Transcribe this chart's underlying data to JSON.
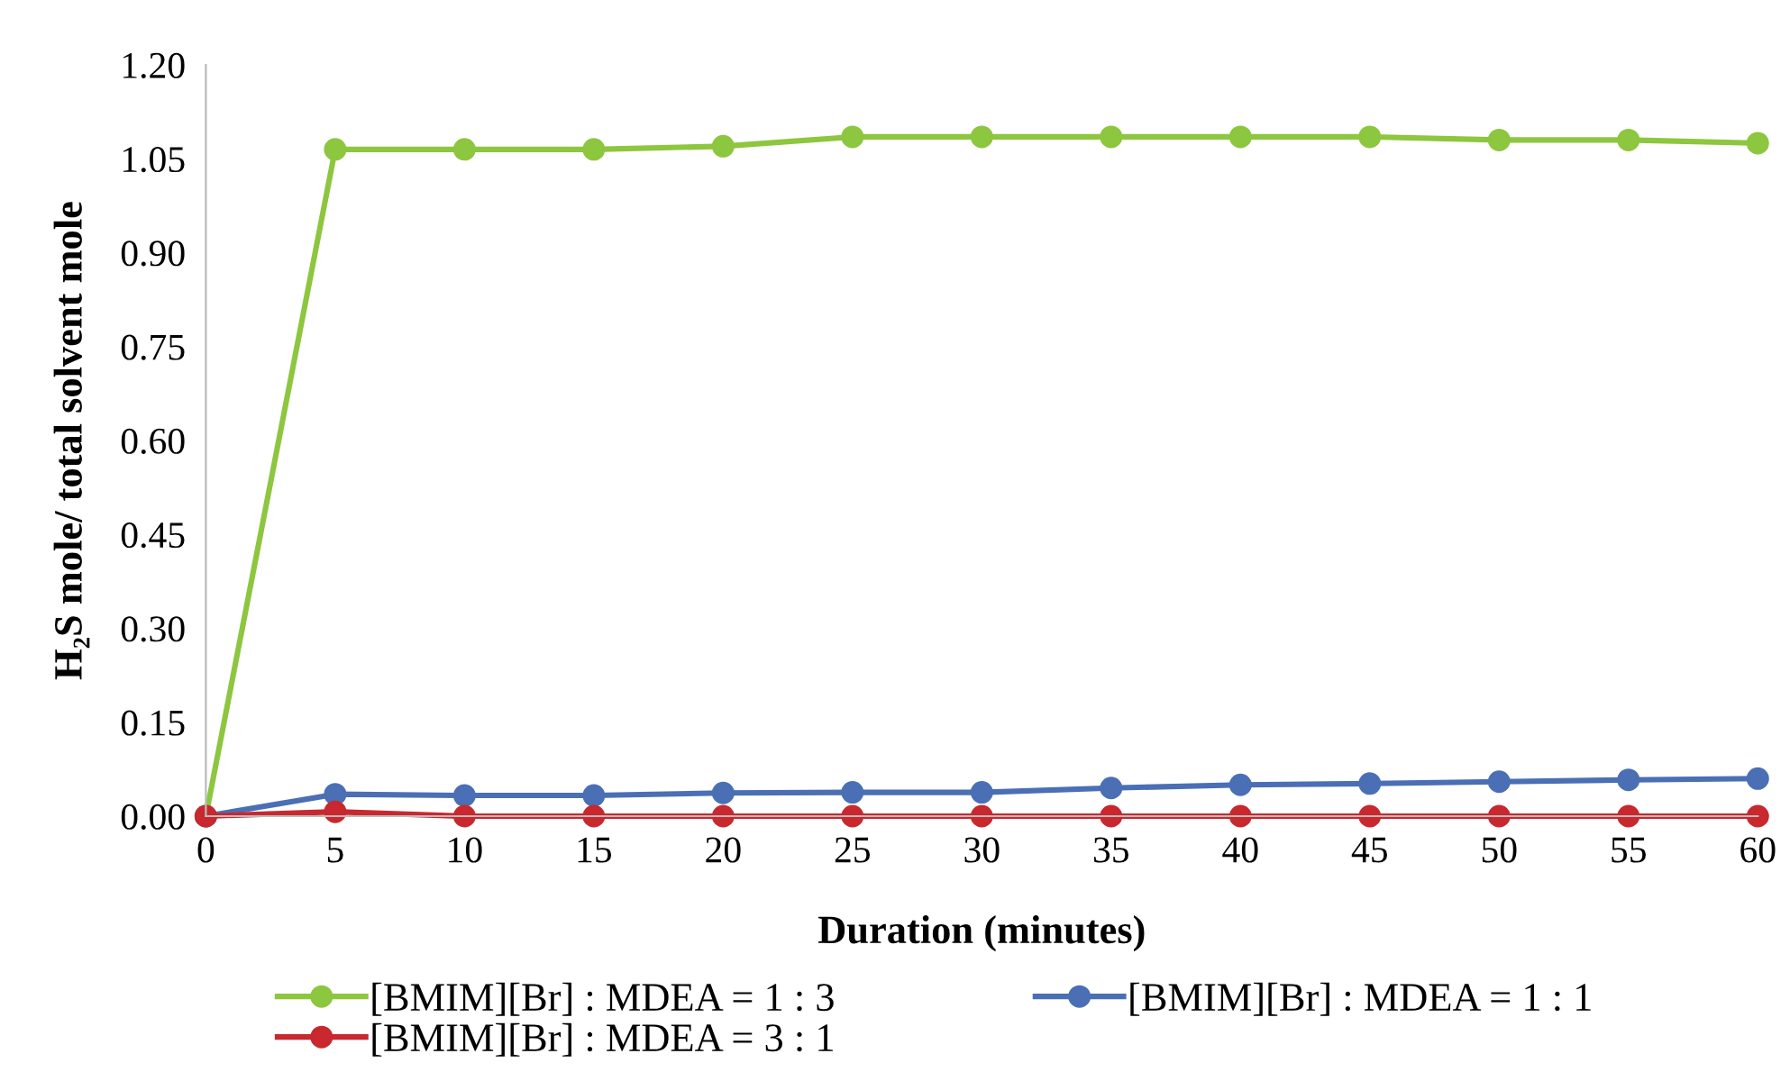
{
  "chart_data": {
    "type": "line",
    "xlabel": "Duration (minutes)",
    "ylabel": "H₂S mole/ total solvent mole",
    "x": [
      0,
      5,
      10,
      15,
      20,
      25,
      30,
      35,
      40,
      45,
      50,
      55,
      60
    ],
    "series": [
      {
        "name": "[BMIM][Br] : MDEA = 1 : 3",
        "color": "#8dc63f",
        "values": [
          0,
          1.065,
          1.065,
          1.065,
          1.07,
          1.085,
          1.085,
          1.085,
          1.085,
          1.085,
          1.08,
          1.08,
          1.075
        ]
      },
      {
        "name": "[BMIM][Br] : MDEA = 1 : 1",
        "color": "#4a6fb5",
        "values": [
          0,
          0.035,
          0.033,
          0.033,
          0.037,
          0.038,
          0.038,
          0.045,
          0.05,
          0.052,
          0.055,
          0.058,
          0.06
        ]
      },
      {
        "name": "[BMIM][Br] : MDEA = 3 : 1",
        "color": "#c8282e",
        "values": [
          0,
          0.007,
          0,
          0,
          0,
          0,
          0,
          0,
          0,
          0,
          0,
          0,
          0
        ]
      }
    ],
    "xlim": [
      0,
      60
    ],
    "xticks": [
      0,
      5,
      10,
      15,
      20,
      25,
      30,
      35,
      40,
      45,
      50,
      55,
      60
    ],
    "ylim": [
      0,
      1.2
    ],
    "yticks": [
      {
        "value": 0,
        "label": "0.00"
      },
      {
        "value": 0.15,
        "label": "0.15"
      },
      {
        "value": 0.3,
        "label": "0.30"
      },
      {
        "value": 0.45,
        "label": "0.45"
      },
      {
        "value": 0.6,
        "label": "0.60"
      },
      {
        "value": 0.75,
        "label": "0.75"
      },
      {
        "value": 0.9,
        "label": "0.90"
      },
      {
        "value": 1.05,
        "label": "1.05"
      },
      {
        "value": 1.2,
        "label": "1.20"
      }
    ],
    "grid": false,
    "legend": "bottom",
    "marker": "circle",
    "line_style": "solid"
  }
}
